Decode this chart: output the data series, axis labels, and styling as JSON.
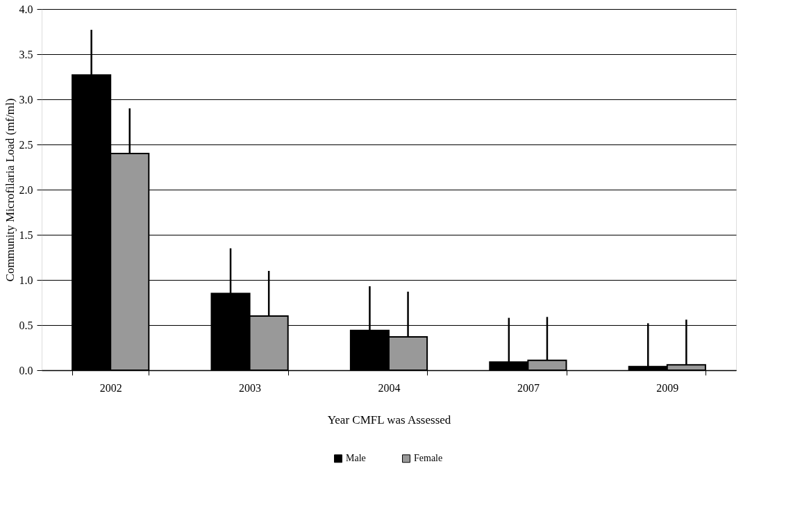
{
  "chart_data": {
    "type": "bar",
    "xlabel": "Year CMFL was Assessed",
    "ylabel": "Community Microfilaria Load (mf/ml)",
    "categories": [
      "2002",
      "2003",
      "2004",
      "2007",
      "2009"
    ],
    "series": [
      {
        "name": "Male",
        "color": "#000000",
        "values": [
          3.27,
          0.85,
          0.44,
          0.09,
          0.04
        ],
        "errors": [
          [
            3.27,
            3.77
          ],
          [
            0.85,
            1.35
          ],
          [
            0.44,
            0.93
          ],
          [
            0.09,
            0.58
          ],
          [
            0.04,
            0.52
          ]
        ]
      },
      {
        "name": "Female",
        "color": "#999999",
        "values": [
          2.4,
          0.6,
          0.37,
          0.11,
          0.06
        ],
        "errors": [
          [
            2.4,
            2.9
          ],
          [
            0.6,
            1.1
          ],
          [
            0.37,
            0.87
          ],
          [
            0.11,
            0.59
          ],
          [
            0.06,
            0.56
          ]
        ]
      }
    ],
    "ylim": [
      0,
      4
    ],
    "yticks": [
      {
        "value": 0,
        "label": "0.0"
      },
      0.5,
      {
        "value": 1,
        "label": "1.0"
      },
      1.5,
      {
        "value": 2,
        "label": "2.0"
      },
      2.5,
      {
        "value": 3,
        "label": "3.0"
      },
      3.5,
      {
        "value": 4,
        "label": "4.0"
      }
    ],
    "grid": "y",
    "legend": "bottom"
  }
}
